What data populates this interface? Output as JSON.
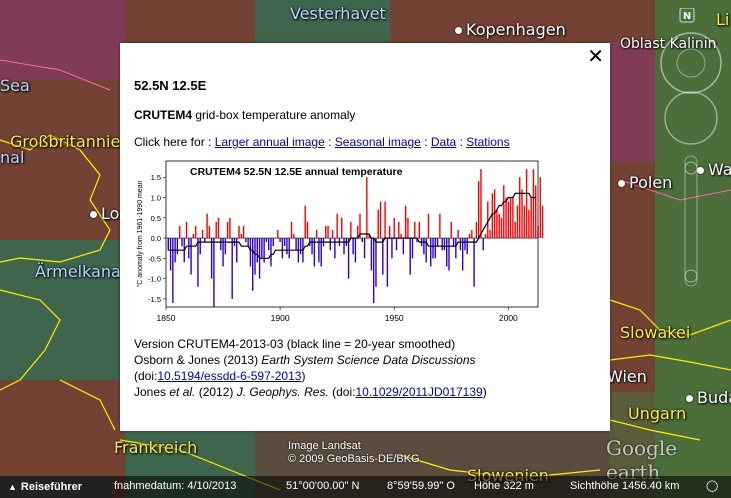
{
  "map": {
    "labels": [
      {
        "name": "vesterhavet",
        "text": "Vesterhavet",
        "cls": "b"
      },
      {
        "name": "kopenhagen",
        "text": "Kopenhagen",
        "cls": "",
        "dot": true
      },
      {
        "name": "oblast-kalinin",
        "text": "Oblast Kalinin",
        "cls": ""
      },
      {
        "name": "sea",
        "text": "Sea",
        "cls": "b"
      },
      {
        "name": "grossbritannien",
        "text": "Großbritannie",
        "cls": "y"
      },
      {
        "name": "nal",
        "text": "nal",
        "cls": "b"
      },
      {
        "name": "london",
        "text": "Lo",
        "cls": "",
        "dot": true
      },
      {
        "name": "aermelkanal",
        "text": "Ärmelkana",
        "cls": "b"
      },
      {
        "name": "polen",
        "text": "Polen",
        "cls": "",
        "dot": true
      },
      {
        "name": "warschau",
        "text": "Wa",
        "cls": "",
        "dot": true
      },
      {
        "name": "slowakei",
        "text": "Slowakei",
        "cls": "y"
      },
      {
        "name": "wien",
        "text": "Wien",
        "cls": "",
        "dot": true
      },
      {
        "name": "budapest",
        "text": "Budap",
        "cls": "",
        "dot": true
      },
      {
        "name": "ungarn",
        "text": "Ungarn",
        "cls": "y"
      },
      {
        "name": "frankreich",
        "text": "Frankreich",
        "cls": "y"
      },
      {
        "name": "slowenien",
        "text": "Slowenien",
        "cls": "y"
      },
      {
        "name": "li",
        "text": "Li",
        "cls": "y"
      }
    ],
    "copyright": [
      "Image Landsat",
      "© 2009 GeoBasis-DE/BKG"
    ],
    "google_earth": "Google earth"
  },
  "popup": {
    "title": "52.5N 12.5E",
    "subtitle_bold": "CRUTEM4",
    "subtitle_rest": " grid-box temperature anomaly",
    "links_prefix": "Click here for : ",
    "links": [
      "Larger annual image",
      "Seasonal image",
      "Data",
      "Stations"
    ],
    "refs": {
      "version": "Version CRUTEM4-2013-03 (black line = 20-year smoothed)",
      "osborn_a": "Osborn & Jones (2013) ",
      "osborn_b": "Earth System Science Data Discussions",
      "osborn_doi_prefix": "(doi:",
      "osborn_doi": "10.5194/essdd-6-597-2013",
      "osborn_doi_suffix": ")",
      "jones_a": "Jones ",
      "jones_b": "et al.",
      "jones_c": " (2012) ",
      "jones_d": "J. Geophys. Res.",
      "jones_e": " (doi:",
      "jones_doi": "10.1029/2011JD017139",
      "jones_f": ")"
    }
  },
  "chart_data": {
    "type": "bar",
    "title": "CRUTEM4 52.5N 12.5E annual temperature",
    "ylabel": "°C anomaly from 1961-1990 mean",
    "xlim": [
      1850,
      2013
    ],
    "ylim": [
      -1.7,
      1.9
    ],
    "xticks": [
      1850,
      1900,
      1950,
      2000
    ],
    "yticks": [
      1.5,
      1.0,
      0.5,
      0.0,
      -0.5,
      -1.0,
      -1.5
    ],
    "colors": {
      "positive": "#ff0000",
      "negative": "#3300cc",
      "smooth": "#000000"
    },
    "years_start": 1851,
    "values": [
      -0.3,
      -0.8,
      -1.6,
      -0.6,
      -0.4,
      0.3,
      -0.2,
      -0.6,
      0.4,
      -0.5,
      -0.9,
      0.1,
      0.3,
      -1.2,
      -0.4,
      0.2,
      -0.1,
      0.6,
      0.3,
      -1.0,
      -1.7,
      0.4,
      0.5,
      -0.3,
      -0.7,
      -0.4,
      0.4,
      0.5,
      -1.5,
      -0.2,
      -0.6,
      0.3,
      0.1,
      0.3,
      -0.1,
      -0.2,
      -0.7,
      -1.3,
      -0.9,
      -0.6,
      -1.0,
      -0.5,
      -0.6,
      -0.1,
      -0.3,
      -0.7,
      -0.2,
      0.0,
      0.2,
      -0.1,
      -0.5,
      -0.2,
      -0.4,
      -0.5,
      0.4,
      0.1,
      -0.3,
      -0.6,
      -0.4,
      -0.6,
      0.8,
      0.4,
      -0.2,
      -0.4,
      -0.7,
      0.2,
      -0.6,
      -0.7,
      -0.2,
      0.3,
      0.3,
      -0.3,
      0.2,
      -0.5,
      0.6,
      -0.2,
      0.5,
      -0.4,
      -0.2,
      -1.0,
      0.4,
      -0.4,
      -0.6,
      0.3,
      0.6,
      -0.1,
      -0.5,
      1.5,
      0.1,
      -0.8,
      -1.6,
      -1.2,
      0.7,
      0.9,
      -0.9,
      0.9,
      -1.2,
      0.3,
      -0.5,
      0.5,
      -0.3,
      0.4,
      0.1,
      -0.4,
      0.8,
      0.5,
      -0.9,
      -0.5,
      0.4,
      -0.1,
      0.4,
      -0.2,
      -0.4,
      -0.6,
      0.6,
      -0.7,
      -0.5,
      -0.5,
      -0.2,
      0.6,
      -0.3,
      -0.3,
      -0.7,
      -0.8,
      0.4,
      -0.2,
      -0.5,
      0.2,
      -0.3,
      -0.8,
      -0.3,
      -0.4,
      0.1,
      0.2,
      -1.2,
      0.4,
      1.4,
      1.7,
      -0.3,
      0.1,
      0.9,
      0.2,
      1.1,
      1.2,
      0.7,
      0.6,
      0.5,
      1.3,
      1.0,
      0.9,
      1.0,
      1.0,
      0.4,
      0.8,
      1.5,
      1.2,
      0.8,
      1.7,
      0.7,
      1.0,
      1.7,
      1.3,
      0.3,
      1.5,
      0.8
    ],
    "smooth": [
      -0.3,
      -0.3,
      -0.3,
      -0.3,
      -0.3,
      -0.3,
      -0.3,
      -0.3,
      -0.2,
      -0.2,
      -0.2,
      -0.2,
      -0.2,
      -0.1,
      -0.1,
      -0.1,
      -0.1,
      -0.1,
      -0.1,
      -0.1,
      -0.1,
      -0.1,
      -0.1,
      -0.1,
      -0.1,
      -0.1,
      -0.1,
      -0.1,
      -0.1,
      -0.1,
      -0.1,
      -0.1,
      -0.2,
      -0.2,
      -0.2,
      -0.2,
      -0.3,
      -0.3,
      -0.4,
      -0.4,
      -0.5,
      -0.5,
      -0.5,
      -0.5,
      -0.5,
      -0.4,
      -0.4,
      -0.3,
      -0.3,
      -0.3,
      -0.3,
      -0.3,
      -0.3,
      -0.3,
      -0.3,
      -0.3,
      -0.3,
      -0.3,
      -0.3,
      -0.3,
      -0.2,
      -0.2,
      -0.1,
      -0.1,
      -0.1,
      -0.1,
      -0.1,
      -0.1,
      -0.1,
      -0.1,
      -0.1,
      -0.1,
      -0.1,
      -0.1,
      -0.1,
      -0.1,
      -0.1,
      -0.1,
      -0.1,
      -0.1,
      0.0,
      0.0,
      0.0,
      0.0,
      0.1,
      0.1,
      0.1,
      0.1,
      0.1,
      0.0,
      0.0,
      -0.1,
      -0.1,
      -0.1,
      -0.1,
      0.0,
      0.0,
      0.0,
      0.0,
      0.0,
      0.0,
      0.0,
      0.0,
      0.0,
      0.0,
      0.0,
      0.0,
      0.0,
      0.0,
      0.0,
      -0.1,
      -0.1,
      -0.1,
      -0.1,
      -0.2,
      -0.2,
      -0.2,
      -0.2,
      -0.2,
      -0.2,
      -0.2,
      -0.2,
      -0.2,
      -0.2,
      -0.2,
      -0.2,
      -0.2,
      -0.1,
      -0.1,
      -0.1,
      -0.1,
      -0.1,
      -0.1,
      -0.1,
      -0.1,
      -0.1,
      0.0,
      0.1,
      0.2,
      0.3,
      0.4,
      0.5,
      0.6,
      0.6,
      0.7,
      0.8,
      0.8,
      0.9,
      0.9,
      1.0,
      1.0,
      1.0,
      1.1,
      1.1,
      1.1,
      1.1,
      1.1,
      1.1,
      1.1,
      1.0,
      1.0,
      1.0
    ]
  },
  "footer": {
    "guide": "Reiseführer",
    "imagedate": "fnahmedatum: 4/10/2013",
    "lat": "51°00'00.00\" N",
    "lon": "8°59'59.99\" O",
    "elev": "Höhe   322 m",
    "eye": "Sichthöhe 1456.40 km"
  }
}
